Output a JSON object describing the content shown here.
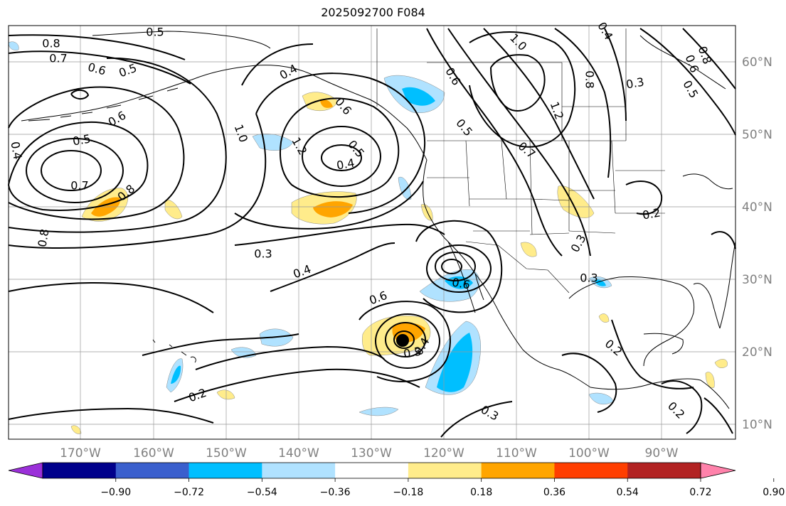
{
  "title": "2025092700 F084",
  "map": {
    "lon_ticks": [
      "170°W",
      "160°W",
      "150°W",
      "140°W",
      "130°W",
      "120°W",
      "110°W",
      "100°W",
      "90°W"
    ],
    "lat_ticks": [
      "60°N",
      "50°N",
      "40°N",
      "30°N",
      "20°N",
      "10°N"
    ],
    "contour_labels": [
      "0.8",
      "0.7",
      "0.6",
      "0.5",
      "0.5",
      "0.4",
      "0.5",
      "0.6",
      "0.7",
      "0.8",
      "0.8",
      "1.0",
      "1.2",
      "0.6",
      "0.5",
      "0.4",
      "0.4",
      "0.3",
      "0.4",
      "0.6",
      "0.6",
      "0.3",
      "0.4",
      "0.2",
      "0.3",
      "0.6",
      "0.5",
      "0.7",
      "1.2",
      "0.8",
      "1.0",
      "0.4",
      "0.8",
      "0.6",
      "0.5",
      "0.3",
      "0.2",
      "0.3",
      "0.3",
      "0.2",
      "0.2"
    ],
    "colormap": [
      "#9b30d9",
      "#00008b",
      "#3a5fcd",
      "#00bfff",
      "#b0e2ff",
      "#ffffff",
      "#ffec8b",
      "#ffa500",
      "#ff3e00",
      "#b22222",
      "#ff82ab"
    ]
  },
  "colorbar": {
    "labels": [
      "−0.90",
      "−0.72",
      "−0.54",
      "−0.36",
      "−0.18",
      "0.18",
      "0.36",
      "0.54",
      "0.72",
      "0.90"
    ]
  }
}
